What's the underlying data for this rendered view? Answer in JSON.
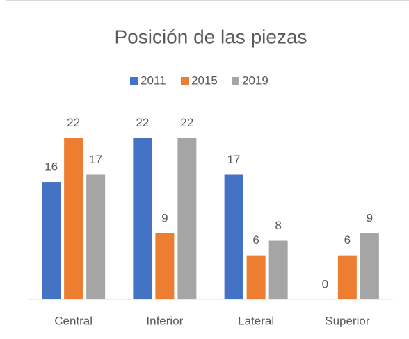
{
  "chart_data": {
    "type": "bar",
    "title": "Posición de las piezas",
    "categories": [
      "Central",
      "Inferior",
      "Lateral",
      "Superior"
    ],
    "series": [
      {
        "name": "2011",
        "color": "#4472c4",
        "values": [
          16,
          22,
          17,
          0
        ]
      },
      {
        "name": "2015",
        "color": "#ed7d31",
        "values": [
          22,
          9,
          6,
          6
        ]
      },
      {
        "name": "2019",
        "color": "#a5a5a5",
        "values": [
          17,
          22,
          8,
          9
        ]
      }
    ],
    "ylim": [
      0,
      25
    ],
    "legend": "top",
    "grid": false
  }
}
